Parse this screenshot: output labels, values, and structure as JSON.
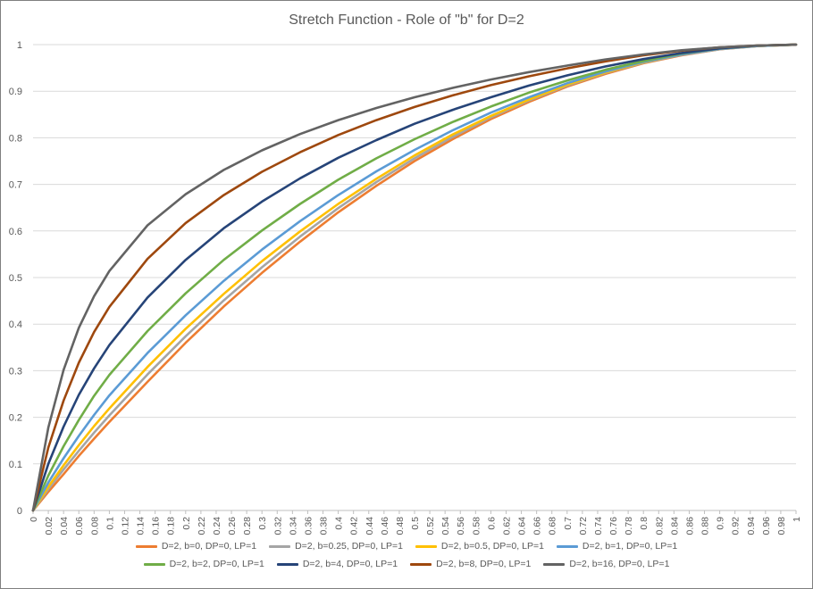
{
  "chart_data": {
    "type": "line",
    "title": "Stretch Function - Role of \"b\" for D=2",
    "xlabel": "",
    "ylabel": "",
    "xlim": [
      0,
      1
    ],
    "ylim": [
      0,
      1
    ],
    "x_ticks": [
      "0",
      "0.02",
      "0.04",
      "0.06",
      "0.08",
      "0.1",
      "0.12",
      "0.14",
      "0.16",
      "0.18",
      "0.2",
      "0.22",
      "0.24",
      "0.26",
      "0.28",
      "0.3",
      "0.32",
      "0.34",
      "0.36",
      "0.38",
      "0.4",
      "0.42",
      "0.44",
      "0.46",
      "0.48",
      "0.5",
      "0.52",
      "0.54",
      "0.56",
      "0.58",
      "0.6",
      "0.62",
      "0.64",
      "0.66",
      "0.68",
      "0.7",
      "0.72",
      "0.74",
      "0.76",
      "0.78",
      "0.8",
      "0.82",
      "0.84",
      "0.86",
      "0.88",
      "0.9",
      "0.92",
      "0.94",
      "0.96",
      "0.98",
      "1"
    ],
    "y_ticks": [
      "0",
      "0.1",
      "0.2",
      "0.3",
      "0.4",
      "0.5",
      "0.6",
      "0.7",
      "0.8",
      "0.9",
      "1"
    ],
    "grid": "horizontal",
    "legend_position": "bottom",
    "x": [
      0,
      0.02,
      0.04,
      0.06,
      0.08,
      0.1,
      0.15,
      0.2,
      0.25,
      0.3,
      0.35,
      0.4,
      0.45,
      0.5,
      0.55,
      0.6,
      0.65,
      0.7,
      0.75,
      0.8,
      0.85,
      0.9,
      0.95,
      1
    ],
    "series": [
      {
        "name": "D=2, b=0, DP=0, LP=1",
        "color": "#ED7D31",
        "values": [
          0,
          0.04,
          0.078,
          0.117,
          0.154,
          0.19,
          0.276,
          0.36,
          0.438,
          0.51,
          0.577,
          0.64,
          0.697,
          0.75,
          0.797,
          0.84,
          0.877,
          0.91,
          0.937,
          0.96,
          0.977,
          0.99,
          0.997,
          1
        ]
      },
      {
        "name": "D=2, b=0.25, DP=0, LP=1",
        "color": "#A5A5A5",
        "values": [
          0,
          0.046,
          0.088,
          0.128,
          0.167,
          0.204,
          0.292,
          0.374,
          0.451,
          0.522,
          0.588,
          0.649,
          0.705,
          0.756,
          0.802,
          0.844,
          0.88,
          0.912,
          0.939,
          0.961,
          0.978,
          0.99,
          0.997,
          1
        ]
      },
      {
        "name": "D=2, b=0.5, DP=0, LP=1",
        "color": "#FFC000",
        "values": [
          0,
          0.051,
          0.097,
          0.14,
          0.181,
          0.219,
          0.308,
          0.39,
          0.465,
          0.535,
          0.599,
          0.658,
          0.712,
          0.762,
          0.807,
          0.847,
          0.882,
          0.914,
          0.94,
          0.962,
          0.979,
          0.991,
          0.997,
          1
        ]
      },
      {
        "name": "D=2, b=1, DP=0, LP=1",
        "color": "#5B9BD5",
        "values": [
          0,
          0.06,
          0.112,
          0.16,
          0.205,
          0.247,
          0.338,
          0.419,
          0.493,
          0.56,
          0.621,
          0.677,
          0.728,
          0.774,
          0.816,
          0.854,
          0.887,
          0.917,
          0.942,
          0.963,
          0.979,
          0.991,
          0.997,
          1
        ]
      },
      {
        "name": "D=2, b=2, DP=0, LP=1",
        "color": "#70AD47",
        "values": [
          0,
          0.075,
          0.138,
          0.194,
          0.246,
          0.291,
          0.385,
          0.466,
          0.538,
          0.601,
          0.658,
          0.71,
          0.756,
          0.797,
          0.834,
          0.867,
          0.897,
          0.923,
          0.946,
          0.965,
          0.981,
          0.992,
          0.998,
          1
        ]
      },
      {
        "name": "D=2, b=4, DP=0, LP=1",
        "color": "#264478",
        "values": [
          0,
          0.1,
          0.18,
          0.248,
          0.305,
          0.355,
          0.457,
          0.538,
          0.606,
          0.663,
          0.713,
          0.757,
          0.795,
          0.83,
          0.86,
          0.887,
          0.912,
          0.934,
          0.953,
          0.969,
          0.982,
          0.992,
          0.998,
          1
        ]
      },
      {
        "name": "D=2, b=8, DP=0, LP=1",
        "color": "#9E480E",
        "values": [
          0,
          0.135,
          0.236,
          0.317,
          0.383,
          0.437,
          0.54,
          0.617,
          0.677,
          0.727,
          0.769,
          0.806,
          0.838,
          0.866,
          0.891,
          0.913,
          0.932,
          0.949,
          0.964,
          0.977,
          0.987,
          0.994,
          0.998,
          1
        ]
      },
      {
        "name": "D=2, b=16, DP=0, LP=1",
        "color": "#636363",
        "values": [
          0,
          0.178,
          0.302,
          0.392,
          0.46,
          0.514,
          0.612,
          0.679,
          0.731,
          0.773,
          0.808,
          0.838,
          0.864,
          0.887,
          0.907,
          0.925,
          0.941,
          0.955,
          0.968,
          0.979,
          0.988,
          0.994,
          0.998,
          1
        ]
      }
    ]
  }
}
